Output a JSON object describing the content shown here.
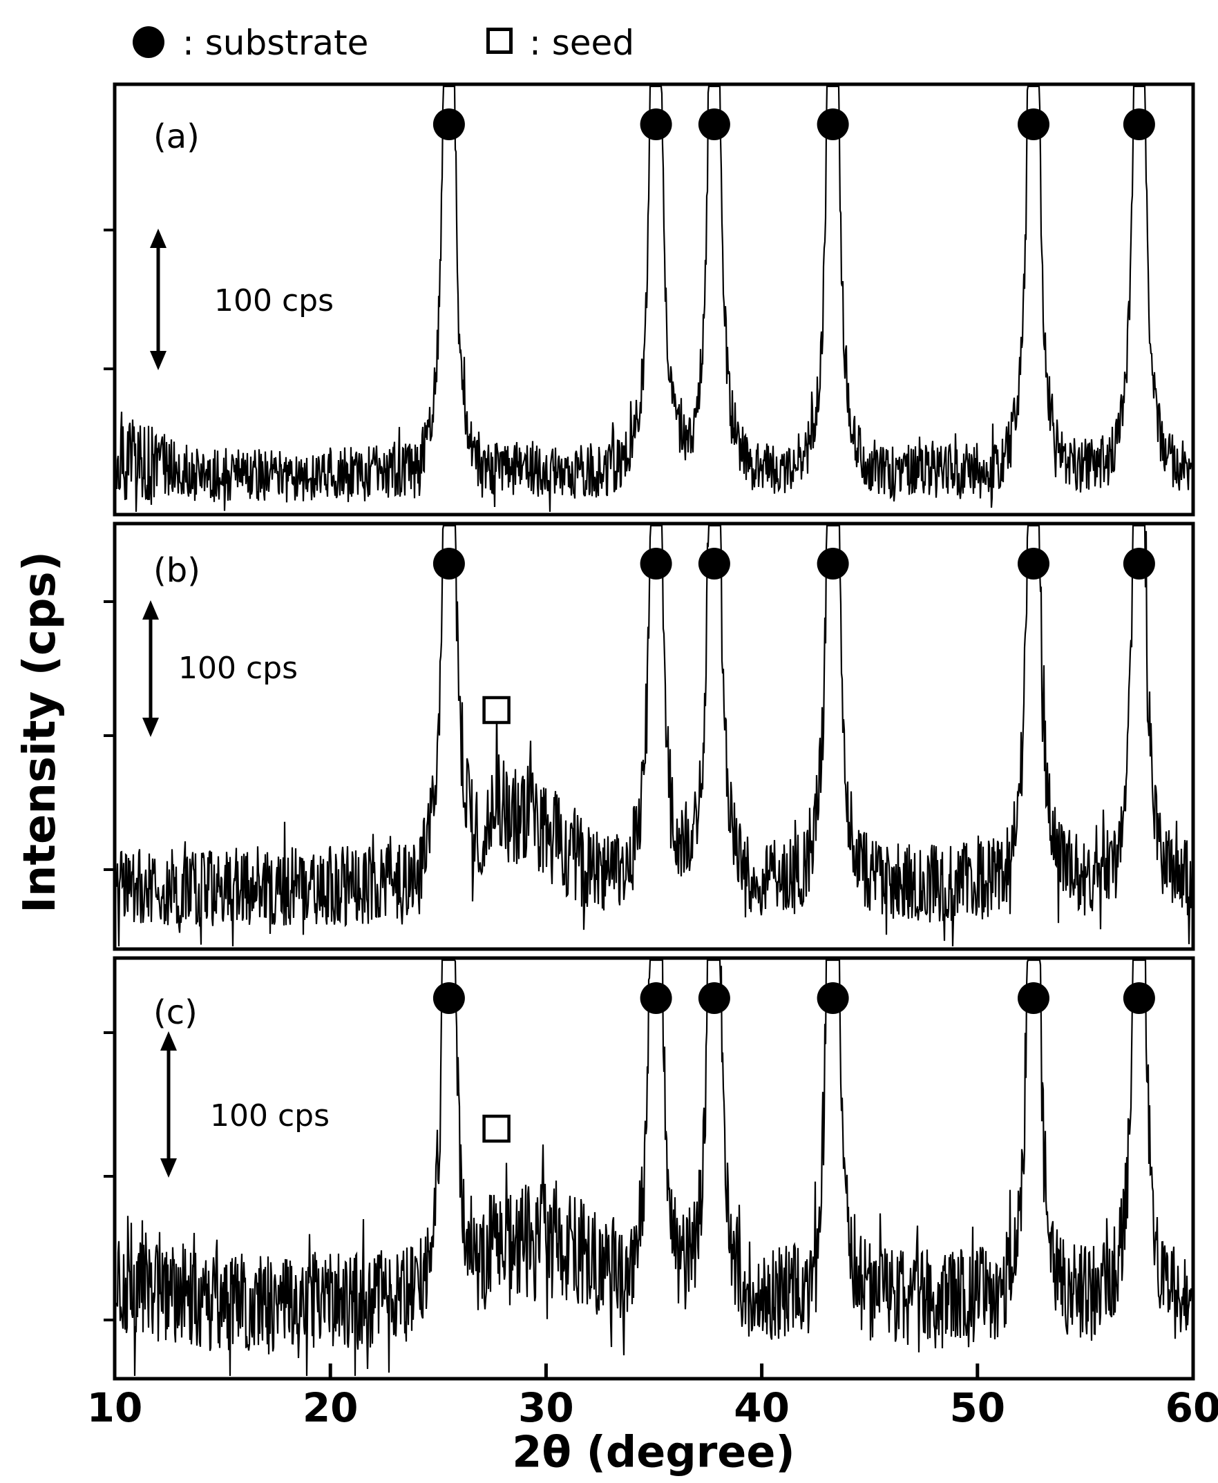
{
  "legend": {
    "substrate": {
      "marker": "filled-circle",
      "label": ": substrate"
    },
    "seed": {
      "marker": "open-square",
      "label": ": seed"
    }
  },
  "chart_data": {
    "type": "line",
    "xlabel": "2θ (degree)",
    "ylabel": "Intensity (cps)",
    "xlim": [
      10,
      60
    ],
    "x_ticks": [
      10,
      20,
      30,
      40,
      50,
      60
    ],
    "intensity_scale_bar_cps": 100,
    "panels": [
      {
        "label": "(a)",
        "scale_bar_label": "100 cps",
        "substrate_peaks_2theta": [
          25.5,
          35.1,
          37.8,
          43.3,
          52.6,
          57.5
        ],
        "seed_peaks_2theta": [],
        "broad_amorphous_hump": false,
        "hump_center_2theta": null,
        "hump_sigma_2theta": null
      },
      {
        "label": "(b)",
        "scale_bar_label": "100 cps",
        "substrate_peaks_2theta": [
          25.5,
          35.1,
          37.8,
          43.3,
          52.6,
          57.5
        ],
        "seed_peaks_2theta": [
          27.7
        ],
        "broad_amorphous_hump": true,
        "hump_center_2theta": 28.8,
        "hump_sigma_2theta": 2.6
      },
      {
        "label": "(c)",
        "scale_bar_label": "100 cps",
        "substrate_peaks_2theta": [
          25.5,
          35.1,
          37.8,
          43.3,
          52.6,
          57.5
        ],
        "seed_peaks_2theta": [
          27.7
        ],
        "broad_amorphous_hump": true,
        "hump_center_2theta": 30.0,
        "hump_sigma_2theta": 3.2
      }
    ]
  }
}
